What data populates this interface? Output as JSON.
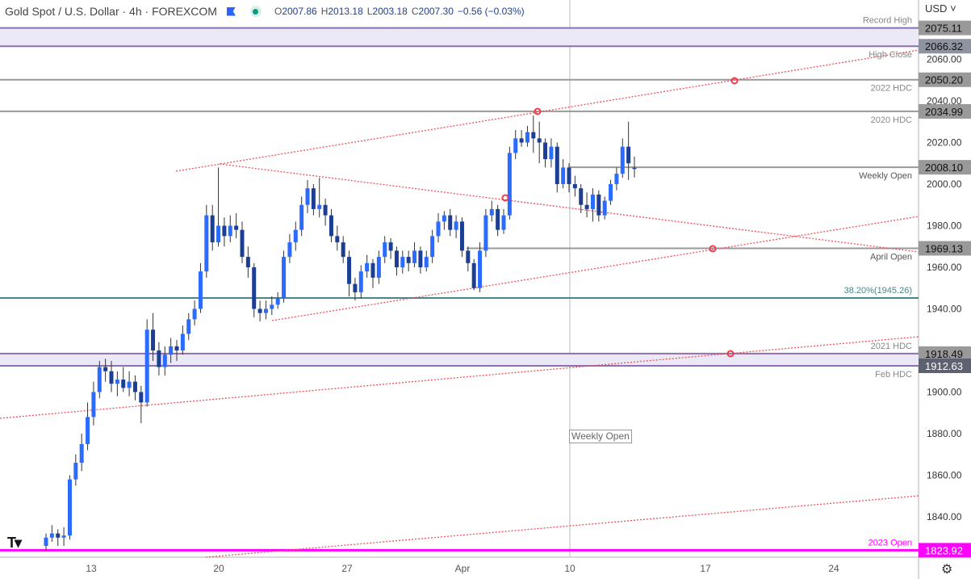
{
  "header": {
    "title": "Gold Spot / U.S. Dollar · 4h · FOREXCOM",
    "open_label": "O",
    "open": "2007.86",
    "high_label": "H",
    "high": "2013.18",
    "low_label": "L",
    "low": "2003.18",
    "close_label": "C",
    "close": "2007.30",
    "change": "−0.56 (−0.03%)",
    "flag_icon": "flag-icon",
    "status_icon": "market-open-dot"
  },
  "currency": "USD",
  "colors": {
    "up": "#2b6bff",
    "down": "#1c3f94",
    "wick": "#333333",
    "level": "#999999",
    "fib": "#4a8589",
    "zone_fill": "#ece9f7",
    "zone_border": "#8e6fb0",
    "trend": "#f0505a",
    "open_2023": "#ff00ff"
  },
  "chart_data": {
    "type": "candlestick",
    "title": "Gold Spot / U.S. Dollar · 4h · FOREXCOM",
    "ylim": [
      1816,
      2088
    ],
    "y_ticks": [
      "2060.00",
      "2040.00",
      "2020.00",
      "2000.00",
      "1980.00",
      "1960.00",
      "1940.00",
      "1900.00",
      "1880.00",
      "1860.00",
      "1840.00"
    ],
    "y_tick_values": [
      2060,
      2040,
      2020,
      2000,
      1980,
      1960,
      1940,
      1900,
      1880,
      1860,
      1840
    ],
    "x_ticks": [
      "13",
      "20",
      "27",
      "Apr",
      "10",
      "17",
      "24"
    ],
    "ohlc": [
      [
        1826,
        1832,
        1824,
        1830
      ],
      [
        1830,
        1836,
        1828,
        1832
      ],
      [
        1832,
        1834,
        1826,
        1830
      ],
      [
        1830,
        1835,
        1826,
        1831
      ],
      [
        1831,
        1860,
        1829,
        1858
      ],
      [
        1858,
        1870,
        1855,
        1866
      ],
      [
        1866,
        1880,
        1862,
        1875
      ],
      [
        1875,
        1895,
        1872,
        1888
      ],
      [
        1888,
        1905,
        1884,
        1900
      ],
      [
        1900,
        1915,
        1897,
        1912
      ],
      [
        1912,
        1916,
        1905,
        1910
      ],
      [
        1910,
        1915,
        1900,
        1904
      ],
      [
        1904,
        1910,
        1898,
        1906
      ],
      [
        1906,
        1912,
        1900,
        1902
      ],
      [
        1902,
        1910,
        1898,
        1905
      ],
      [
        1905,
        1908,
        1896,
        1900
      ],
      [
        1900,
        1903,
        1885,
        1895
      ],
      [
        1895,
        1935,
        1893,
        1930
      ],
      [
        1930,
        1938,
        1915,
        1920
      ],
      [
        1920,
        1924,
        1908,
        1912
      ],
      [
        1912,
        1922,
        1908,
        1918
      ],
      [
        1918,
        1926,
        1914,
        1922
      ],
      [
        1922,
        1925,
        1915,
        1920
      ],
      [
        1920,
        1932,
        1918,
        1928
      ],
      [
        1928,
        1938,
        1925,
        1935
      ],
      [
        1935,
        1944,
        1932,
        1940
      ],
      [
        1940,
        1962,
        1938,
        1958
      ],
      [
        1958,
        1990,
        1955,
        1985
      ],
      [
        1985,
        1990,
        1968,
        1972
      ],
      [
        1972,
        2008,
        1970,
        1980
      ],
      [
        1980,
        1984,
        1970,
        1975
      ],
      [
        1975,
        1985,
        1972,
        1980
      ],
      [
        1980,
        1986,
        1974,
        1978
      ],
      [
        1978,
        1982,
        1962,
        1965
      ],
      [
        1965,
        1970,
        1955,
        1960
      ],
      [
        1960,
        1962,
        1936,
        1940
      ],
      [
        1940,
        1944,
        1934,
        1938
      ],
      [
        1938,
        1944,
        1935,
        1940
      ],
      [
        1940,
        1946,
        1937,
        1942
      ],
      [
        1942,
        1948,
        1940,
        1945
      ],
      [
        1945,
        1968,
        1943,
        1965
      ],
      [
        1965,
        1976,
        1962,
        1972
      ],
      [
        1972,
        1982,
        1968,
        1978
      ],
      [
        1978,
        1994,
        1975,
        1990
      ],
      [
        1990,
        2002,
        1986,
        1998
      ],
      [
        1998,
        2000,
        1985,
        1988
      ],
      [
        1988,
        2003,
        1984,
        1990
      ],
      [
        1990,
        1993,
        1980,
        1985
      ],
      [
        1985,
        1988,
        1972,
        1975
      ],
      [
        1975,
        1980,
        1968,
        1972
      ],
      [
        1972,
        1975,
        1962,
        1965
      ],
      [
        1965,
        1968,
        1946,
        1952
      ],
      [
        1952,
        1955,
        1944,
        1948
      ],
      [
        1948,
        1961,
        1945,
        1958
      ],
      [
        1958,
        1966,
        1955,
        1962
      ],
      [
        1962,
        1964,
        1950,
        1955
      ],
      [
        1955,
        1968,
        1952,
        1965
      ],
      [
        1965,
        1975,
        1962,
        1972
      ],
      [
        1972,
        1974,
        1964,
        1968
      ],
      [
        1968,
        1970,
        1956,
        1960
      ],
      [
        1960,
        1968,
        1957,
        1965
      ],
      [
        1965,
        1968,
        1958,
        1962
      ],
      [
        1962,
        1972,
        1960,
        1968
      ],
      [
        1968,
        1970,
        1957,
        1960
      ],
      [
        1960,
        1968,
        1958,
        1965
      ],
      [
        1965,
        1978,
        1962,
        1975
      ],
      [
        1975,
        1986,
        1972,
        1982
      ],
      [
        1982,
        1987,
        1978,
        1985
      ],
      [
        1985,
        1988,
        1975,
        1978
      ],
      [
        1978,
        1985,
        1974,
        1982
      ],
      [
        1982,
        1984,
        1965,
        1968
      ],
      [
        1968,
        1970,
        1958,
        1962
      ],
      [
        1962,
        1964,
        1949,
        1950
      ],
      [
        1950,
        1972,
        1948,
        1968
      ],
      [
        1968,
        1988,
        1965,
        1985
      ],
      [
        1985,
        1992,
        1982,
        1988
      ],
      [
        1988,
        1990,
        1975,
        1978
      ],
      [
        1978,
        1988,
        1976,
        1985
      ],
      [
        1985,
        2018,
        1983,
        2015
      ],
      [
        2015,
        2026,
        2012,
        2022
      ],
      [
        2022,
        2026,
        2018,
        2020
      ],
      [
        2020,
        2028,
        2018,
        2025
      ],
      [
        2025,
        2033,
        2015,
        2022
      ],
      [
        2022,
        2030,
        2010,
        2020
      ],
      [
        2020,
        2022,
        2008,
        2012
      ],
      [
        2012,
        2022,
        2008,
        2018
      ],
      [
        2018,
        2020,
        1996,
        2000
      ],
      [
        2000,
        2012,
        1998,
        2008
      ],
      [
        2008,
        2010,
        1996,
        2000
      ],
      [
        2000,
        2004,
        1994,
        1998
      ],
      [
        1998,
        2000,
        1986,
        1990
      ],
      [
        1990,
        1996,
        1984,
        1988
      ],
      [
        1988,
        1998,
        1982,
        1995
      ],
      [
        1995,
        1997,
        1982,
        1985
      ],
      [
        1985,
        1994,
        1983,
        1992
      ],
      [
        1992,
        2002,
        1990,
        2000
      ],
      [
        2000,
        2008,
        1997,
        2005
      ],
      [
        2005,
        2022,
        2003,
        2018
      ],
      [
        2018,
        2030,
        2002,
        2010
      ],
      [
        2007.86,
        2013.18,
        2003.18,
        2007.3
      ]
    ],
    "levels": [
      {
        "name": "Record High",
        "price": 2075.11,
        "label": "2075.11",
        "kind": "zone-top"
      },
      {
        "name": "High Close",
        "price": 2066.32,
        "label": "2066.32",
        "kind": "zone-bottom"
      },
      {
        "name": "2022 HDC",
        "price": 2050.2,
        "label": "2050.20",
        "kind": "line"
      },
      {
        "name": "2020 HDC",
        "price": 2034.99,
        "label": "2034.99",
        "kind": "line"
      },
      {
        "name": "Weekly Open",
        "price": 2008.1,
        "label": "2008.10",
        "kind": "line-from-week"
      },
      {
        "name": "April Open",
        "price": 1969.13,
        "label": "1969.13",
        "kind": "line-from-april"
      },
      {
        "name": "38.20%(1945.26)",
        "price": 1945.26,
        "label": "",
        "kind": "fib"
      },
      {
        "name": "2021 HDC",
        "price": 1918.49,
        "label": "1918.49",
        "kind": "zone-top"
      },
      {
        "name": "Feb HDC",
        "price": 1912.63,
        "label": "1912.63",
        "kind": "zone-bottom"
      },
      {
        "name": "2023 Open",
        "price": 1823.92,
        "label": "1823.92",
        "kind": "magenta"
      }
    ],
    "vertical_marker_label": "Weekly Open"
  },
  "footer": {
    "settings_icon": "gear-icon",
    "logo": "TV"
  }
}
